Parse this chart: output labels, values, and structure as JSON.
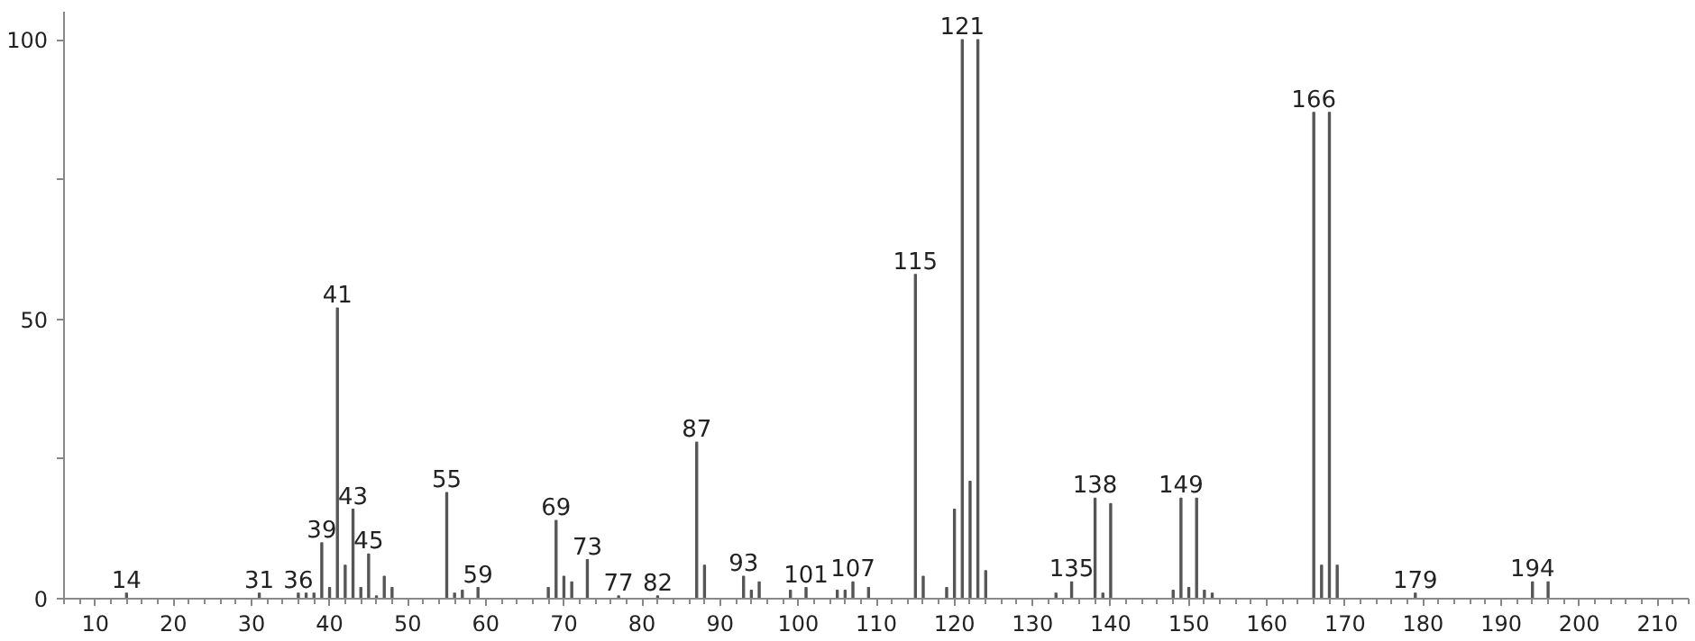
{
  "chart_data": {
    "type": "bar",
    "color": "#555555",
    "x": [
      14,
      31,
      36,
      37,
      38,
      39,
      40,
      41,
      42,
      43,
      44,
      45,
      46,
      47,
      48,
      55,
      56,
      57,
      59,
      68,
      69,
      70,
      71,
      73,
      77,
      82,
      87,
      88,
      93,
      94,
      95,
      99,
      101,
      105,
      106,
      107,
      109,
      115,
      116,
      119,
      120,
      121,
      122,
      123,
      124,
      133,
      135,
      138,
      139,
      140,
      148,
      149,
      150,
      151,
      152,
      153,
      166,
      167,
      168,
      169,
      179,
      194,
      196
    ],
    "values": [
      1,
      1,
      1,
      1,
      1,
      10,
      2,
      52,
      6,
      16,
      2,
      8,
      0.5,
      4,
      2,
      19,
      1,
      1.5,
      2,
      2,
      14,
      4,
      3,
      7,
      0.5,
      0.5,
      28,
      6,
      4,
      1.5,
      3,
      1.5,
      2,
      1.5,
      1.5,
      3,
      2,
      58,
      4,
      2,
      16,
      100,
      21,
      100,
      5,
      1,
      3,
      18,
      1,
      17,
      1.5,
      18,
      2,
      18,
      1.5,
      1,
      87,
      6,
      87,
      6,
      1,
      3,
      3
    ],
    "xlim": [
      6,
      214
    ],
    "ylim": [
      0,
      105
    ],
    "xticks": [
      10,
      20,
      30,
      40,
      50,
      60,
      70,
      80,
      90,
      100,
      110,
      120,
      130,
      140,
      150,
      160,
      170,
      180,
      190,
      200,
      210
    ],
    "yticks": [
      0,
      {
        "value": 25,
        "label": null
      },
      50,
      {
        "value": 75,
        "label": null
      },
      100
    ],
    "grid": false,
    "annotations": [
      {
        "text": "14",
        "x": 14,
        "y": 1
      },
      {
        "text": "31",
        "x": 31,
        "y": 1
      },
      {
        "text": "36",
        "x": 36,
        "y": 1
      },
      {
        "text": "39",
        "x": 39,
        "y": 10
      },
      {
        "text": "41",
        "x": 41,
        "y": 52
      },
      {
        "text": "43",
        "x": 43,
        "y": 16
      },
      {
        "text": "45",
        "x": 45,
        "y": 8
      },
      {
        "text": "55",
        "x": 55,
        "y": 19
      },
      {
        "text": "59",
        "x": 59,
        "y": 2
      },
      {
        "text": "69",
        "x": 69,
        "y": 14
      },
      {
        "text": "73",
        "x": 73,
        "y": 7
      },
      {
        "text": "77",
        "x": 77,
        "y": 0.5
      },
      {
        "text": "82",
        "x": 82,
        "y": 0.5
      },
      {
        "text": "87",
        "x": 87,
        "y": 28
      },
      {
        "text": "93",
        "x": 93,
        "y": 4
      },
      {
        "text": "101",
        "x": 101,
        "y": 2
      },
      {
        "text": "107",
        "x": 107,
        "y": 3
      },
      {
        "text": "115",
        "x": 115,
        "y": 58
      },
      {
        "text": "121",
        "x": 121,
        "y": 100
      },
      {
        "text": "135",
        "x": 135,
        "y": 3
      },
      {
        "text": "138",
        "x": 138,
        "y": 18
      },
      {
        "text": "149",
        "x": 149,
        "y": 18
      },
      {
        "text": "166",
        "x": 166,
        "y": 87
      },
      {
        "text": "179",
        "x": 179,
        "y": 1
      },
      {
        "text": "194",
        "x": 194,
        "y": 3
      }
    ]
  }
}
